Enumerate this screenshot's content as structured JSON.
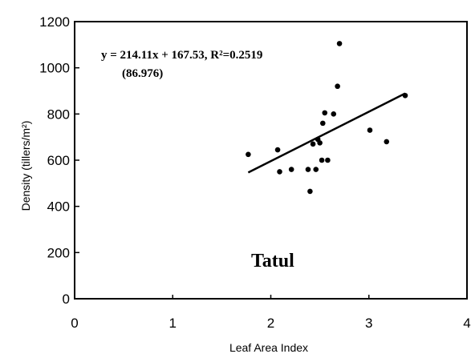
{
  "chart_data": {
    "type": "scatter",
    "xlabel": "Leaf Area Index",
    "ylabel": "Density (tillers/m²)",
    "xlim": [
      0,
      4
    ],
    "ylim": [
      0,
      1200
    ],
    "x_ticks": [
      "0",
      "1",
      "2",
      "3",
      "4"
    ],
    "y_ticks": [
      "0",
      "200",
      "400",
      "600",
      "800",
      "1000",
      "1200"
    ],
    "grid": false,
    "legend": "none",
    "equation": "y = 214.11x + 167.53, R²=0.2519",
    "equation_note": "(86.976)",
    "panel_label": "Tatul",
    "trendline": {
      "slope": 214.11,
      "intercept": 167.53,
      "x_range": [
        1.77,
        3.37
      ]
    },
    "points": [
      {
        "x": 1.77,
        "y": 625
      },
      {
        "x": 2.07,
        "y": 645
      },
      {
        "x": 2.09,
        "y": 550
      },
      {
        "x": 2.21,
        "y": 560
      },
      {
        "x": 2.38,
        "y": 560
      },
      {
        "x": 2.4,
        "y": 465
      },
      {
        "x": 2.43,
        "y": 670
      },
      {
        "x": 2.46,
        "y": 560
      },
      {
        "x": 2.48,
        "y": 690
      },
      {
        "x": 2.5,
        "y": 675
      },
      {
        "x": 2.52,
        "y": 600
      },
      {
        "x": 2.53,
        "y": 760
      },
      {
        "x": 2.55,
        "y": 805
      },
      {
        "x": 2.58,
        "y": 600
      },
      {
        "x": 2.64,
        "y": 800
      },
      {
        "x": 2.68,
        "y": 920
      },
      {
        "x": 2.7,
        "y": 1105
      },
      {
        "x": 3.01,
        "y": 730
      },
      {
        "x": 3.18,
        "y": 680
      },
      {
        "x": 3.37,
        "y": 880
      }
    ]
  }
}
